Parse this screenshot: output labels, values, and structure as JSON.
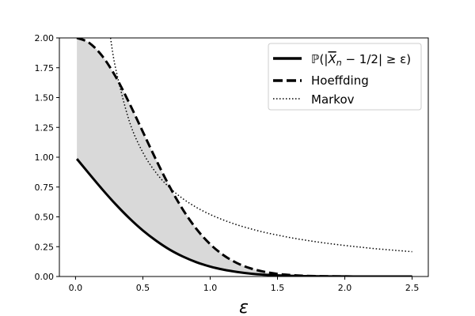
{
  "chart_data": {
    "type": "line",
    "title": "",
    "xlabel": "ε",
    "ylabel": "",
    "xlim": [
      -0.12,
      2.62
    ],
    "ylim": [
      0,
      2.0
    ],
    "grid": false,
    "legend_placement": "top-right",
    "xticks": [
      "0.0",
      "0.5",
      "1.0",
      "1.5",
      "2.0",
      "2.5"
    ],
    "yticks": [
      "0.00",
      "0.25",
      "0.50",
      "0.75",
      "1.00",
      "1.25",
      "1.50",
      "1.75",
      "2.00"
    ],
    "x": [
      0.01,
      0.1,
      0.2,
      0.3,
      0.4,
      0.5,
      0.6,
      0.7,
      0.8,
      0.9,
      1.0,
      1.1,
      1.2,
      1.3,
      1.4,
      1.5,
      1.6,
      1.7,
      1.8,
      1.9,
      2.0,
      2.1,
      2.2,
      2.3,
      2.4,
      2.5
    ],
    "series": [
      {
        "name": "ℙ(|X̄ₙ − 1/2| ≥ ε)",
        "style": "solid",
        "values": [
          0.986,
          0.863,
          0.729,
          0.603,
          0.488,
          0.386,
          0.299,
          0.225,
          0.166,
          0.119,
          0.083,
          0.057,
          0.038,
          0.024,
          0.015,
          0.0094,
          0.0056,
          0.0032,
          0.0018,
          0.001,
          0.0005,
          0.0003,
          0.0001,
          0.0001,
          0,
          0
        ]
      },
      {
        "name": "Hoeffding",
        "style": "dashed",
        "values": [
          2.0,
          1.96,
          1.846,
          1.671,
          1.452,
          1.213,
          0.974,
          0.751,
          0.556,
          0.396,
          0.271,
          0.178,
          0.112,
          0.068,
          0.04,
          0.022,
          0.012,
          0.006,
          0.003,
          0.0015,
          0.0007,
          0.0003,
          0.0001,
          0,
          0,
          0
        ]
      },
      {
        "name": "Markov",
        "style": "dotted",
        "x": [
          0.26,
          0.3,
          0.4,
          0.5,
          0.6,
          0.7,
          0.8,
          0.9,
          1.0,
          1.1,
          1.2,
          1.3,
          1.4,
          1.5,
          1.6,
          1.7,
          1.8,
          1.9,
          2.0,
          2.1,
          2.2,
          2.3,
          2.4,
          2.5
        ],
        "values": [
          2.0,
          1.733,
          1.3,
          1.04,
          0.867,
          0.743,
          0.65,
          0.578,
          0.52,
          0.473,
          0.433,
          0.4,
          0.371,
          0.347,
          0.325,
          0.306,
          0.289,
          0.274,
          0.26,
          0.248,
          0.236,
          0.226,
          0.217,
          0.208
        ]
      }
    ],
    "fill": {
      "between": [
        "ℙ(|X̄ₙ − 1/2| ≥ ε)",
        "Hoeffding"
      ],
      "color": "#d9d9d9"
    },
    "legend": {
      "prob_prefix": "ℙ(|",
      "prob_xbar": "X",
      "prob_sub": "n",
      "prob_suffix": " − 1/2| ≥ ε)",
      "hoeffding": "Hoeffding",
      "markov": "Markov"
    }
  }
}
